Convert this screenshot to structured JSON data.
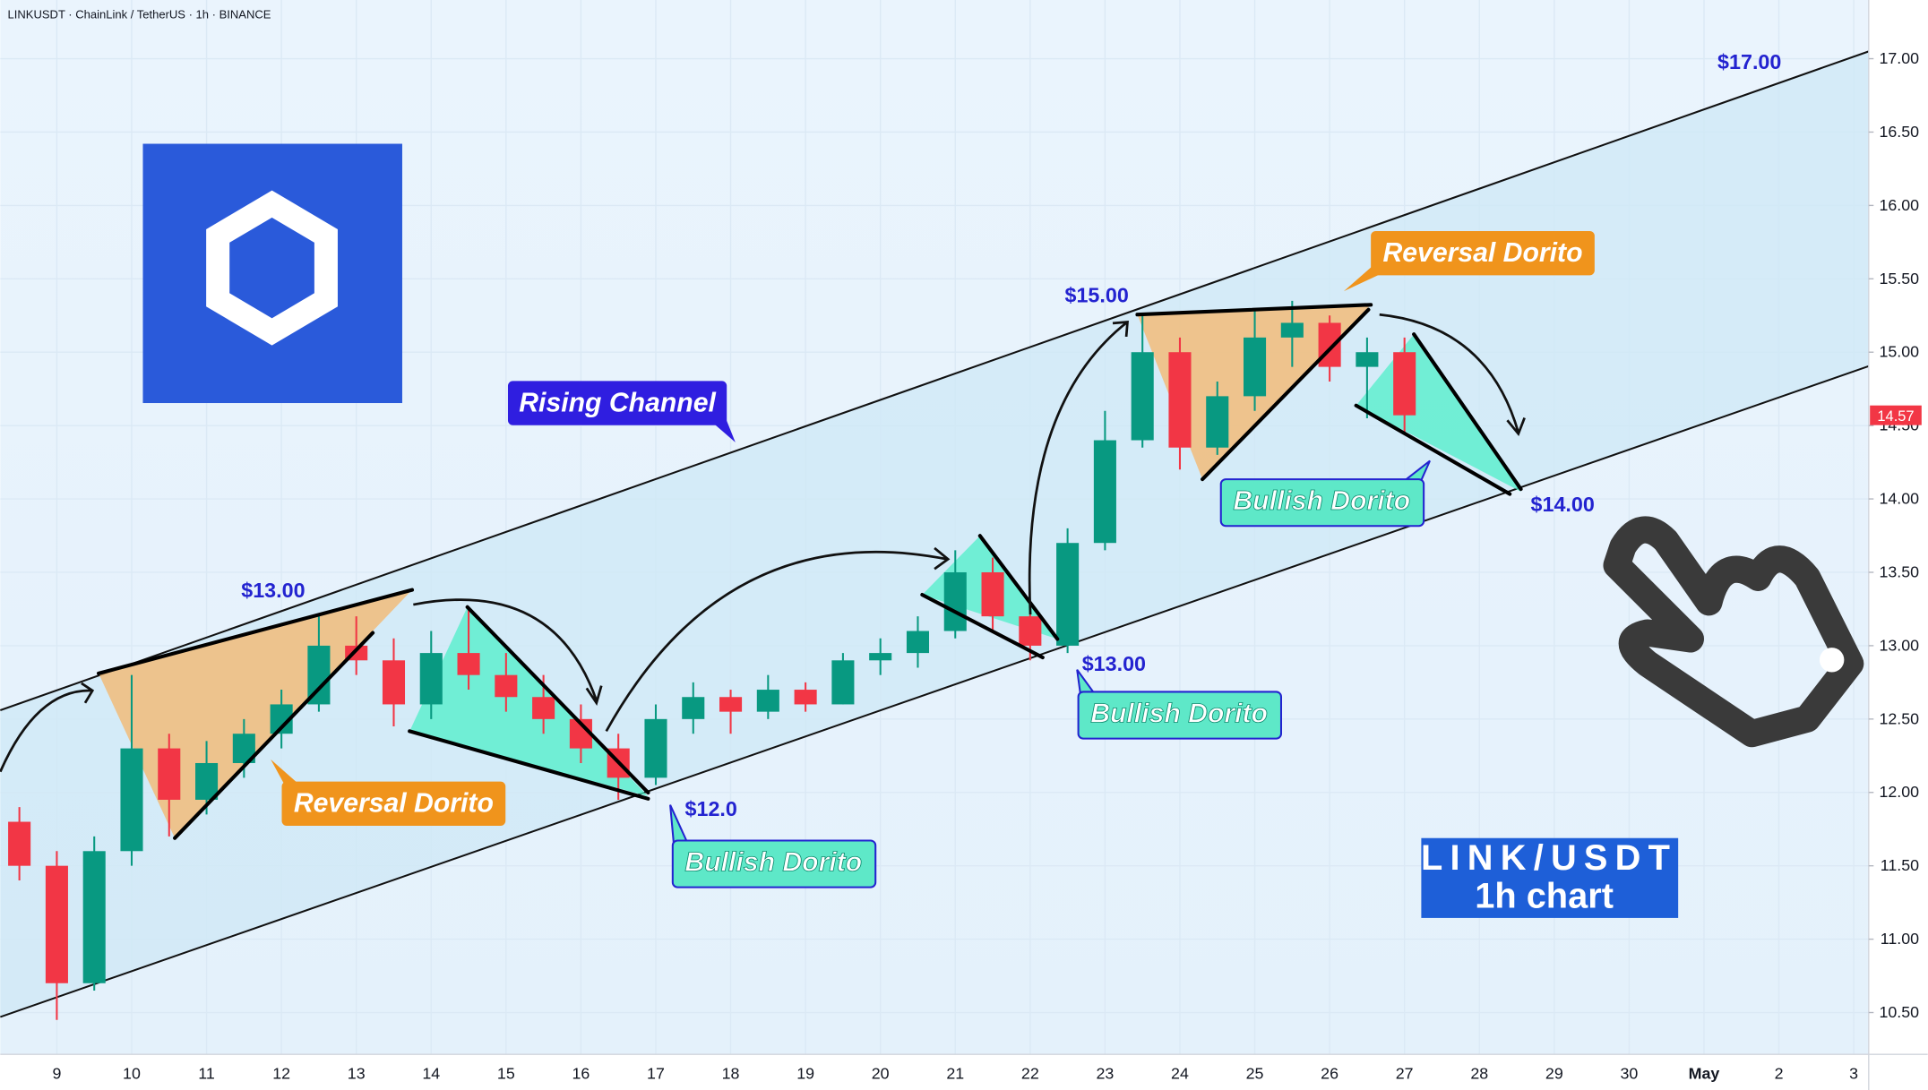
{
  "chart_data": {
    "type": "candlestick",
    "title": "LINKUSDT · ChainLink / TetherUS · 1h · BINANCE",
    "x": [
      8.5,
      9,
      9.5,
      10,
      10.5,
      11,
      11.5,
      12,
      12.5,
      13,
      13.5,
      14,
      14.5,
      15,
      15.5,
      16,
      16.5,
      17,
      17.5,
      18,
      18.5,
      19,
      19.5,
      20,
      20.5,
      21,
      21.5,
      22,
      22.5,
      23,
      23.5,
      24,
      24.5,
      25,
      25.5,
      26,
      26.5,
      27
    ],
    "open": [
      11.8,
      11.5,
      10.7,
      11.6,
      12.3,
      11.95,
      12.2,
      12.4,
      12.6,
      13.0,
      12.9,
      12.6,
      12.95,
      12.8,
      12.65,
      12.5,
      12.3,
      12.1,
      12.5,
      12.65,
      12.55,
      12.7,
      12.6,
      12.9,
      12.95,
      13.1,
      13.5,
      13.2,
      13.0,
      13.7,
      14.4,
      15.0,
      14.35,
      14.7,
      15.1,
      15.2,
      14.9,
      15.0
    ],
    "high": [
      11.9,
      11.6,
      11.7,
      12.8,
      12.4,
      12.35,
      12.5,
      12.7,
      13.2,
      13.2,
      13.05,
      13.1,
      13.25,
      12.95,
      12.8,
      12.6,
      12.4,
      12.6,
      12.75,
      12.7,
      12.8,
      12.75,
      12.95,
      13.05,
      13.2,
      13.65,
      13.6,
      13.3,
      13.8,
      14.6,
      15.25,
      15.1,
      14.8,
      15.3,
      15.35,
      15.25,
      15.1,
      15.1
    ],
    "low": [
      11.4,
      10.45,
      10.65,
      11.5,
      11.7,
      11.85,
      12.1,
      12.3,
      12.55,
      12.8,
      12.45,
      12.5,
      12.7,
      12.55,
      12.4,
      12.2,
      11.95,
      12.05,
      12.4,
      12.4,
      12.5,
      12.55,
      12.6,
      12.8,
      12.85,
      13.05,
      13.1,
      12.9,
      12.95,
      13.65,
      14.35,
      14.2,
      14.3,
      14.6,
      14.9,
      14.8,
      14.55,
      14.45
    ],
    "close": [
      11.5,
      10.7,
      11.6,
      12.3,
      11.95,
      12.2,
      12.4,
      12.6,
      13.0,
      12.9,
      12.6,
      12.95,
      12.8,
      12.65,
      12.5,
      12.3,
      12.1,
      12.5,
      12.65,
      12.55,
      12.7,
      12.6,
      12.9,
      12.95,
      13.1,
      13.5,
      13.2,
      13.0,
      13.7,
      14.4,
      15.0,
      14.35,
      14.7,
      15.1,
      15.2,
      14.9,
      15.0,
      14.57
    ],
    "up_color": "#089981",
    "down_color": "#f23645",
    "xlim": [
      8.245,
      33.2
    ],
    "ylim": [
      10.215,
      17.4
    ],
    "xticks": [
      9,
      10,
      11,
      12,
      13,
      14,
      15,
      16,
      17,
      18,
      19,
      20,
      21,
      22,
      23,
      24,
      25,
      26,
      27,
      28,
      29,
      30,
      {
        "value": 31,
        "label": "May"
      },
      {
        "value": 32,
        "label": "2"
      },
      {
        "value": 33,
        "label": "3"
      }
    ],
    "yticks": [
      {
        "value": 10.5,
        "label": "10.50"
      },
      {
        "value": 11,
        "label": "11.00"
      },
      {
        "value": 11.5,
        "label": "11.50"
      },
      {
        "value": 12,
        "label": "12.00"
      },
      {
        "value": 12.5,
        "label": "12.50"
      },
      {
        "value": 13,
        "label": "13.00"
      },
      {
        "value": 13.5,
        "label": "13.50"
      },
      {
        "value": 14,
        "label": "14.00"
      },
      {
        "value": 14.5,
        "label": "14.50"
      },
      {
        "value": 15,
        "label": "15.00"
      },
      {
        "value": 15.5,
        "label": "15.50"
      },
      {
        "value": 16,
        "label": "16.00"
      },
      {
        "value": 16.5,
        "label": "16.50"
      },
      {
        "value": 17,
        "label": "17.00"
      }
    ],
    "last_price": 14.57,
    "last_price_color": "#f23645",
    "channel": {
      "color": "#cfe8f6",
      "upper": {
        "x": [
          8.245,
          33.2
        ],
        "y": [
          12.56,
          17.05
        ]
      },
      "lower": {
        "x": [
          8.245,
          33.2
        ],
        "y": [
          10.47,
          14.905
        ]
      }
    },
    "annotations": {
      "price_labels": [
        "$13.00",
        "$15.00",
        "$17.00",
        "$12.0",
        "$13.00",
        "$14.00"
      ],
      "rising_channel": "Rising Channel",
      "reversal": [
        "Reversal Dorito",
        "Reversal Dorito"
      ],
      "bullish": [
        "Bullish Dorito",
        "Bullish Dorito",
        "Bullish Dorito"
      ],
      "info": [
        "LINK/USDT",
        "1h chart"
      ]
    }
  }
}
